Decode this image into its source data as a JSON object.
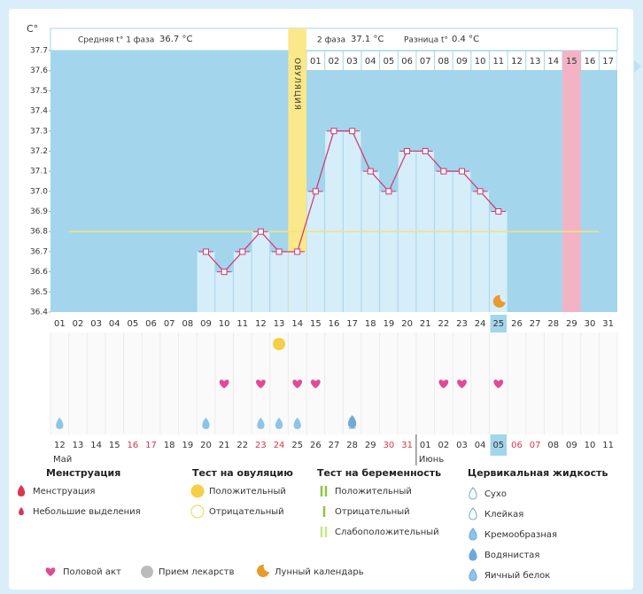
{
  "chart_data": {
    "type": "line",
    "unit_label": "C°",
    "phase1_label": "Средняя t° 1 фаза",
    "phase1_value": "36.7 °C",
    "phase2_label": "2 фаза",
    "phase2_value": "37.1 °C",
    "diff_label": "Разница t°",
    "diff_value": "0.4 °C",
    "phase_labels": [
      null,
      null,
      null,
      null,
      null,
      null,
      null,
      null,
      null,
      null,
      null,
      null,
      null,
      "ОВУЛЯЦИЯ",
      "01",
      "02",
      "03",
      "04",
      "05",
      "06",
      "07",
      "08",
      "09",
      "10",
      "11",
      "12",
      "13",
      "14",
      "15",
      "16",
      "17"
    ],
    "categories": [
      "01",
      "02",
      "03",
      "04",
      "05",
      "06",
      "07",
      "08",
      "09",
      "10",
      "11",
      "12",
      "13",
      "14",
      "15",
      "16",
      "17",
      "18",
      "19",
      "20",
      "21",
      "22",
      "23",
      "24",
      "25",
      "26",
      "27",
      "28",
      "29",
      "30",
      "31"
    ],
    "temperatures": [
      null,
      null,
      null,
      null,
      null,
      null,
      null,
      null,
      36.7,
      36.6,
      36.7,
      36.8,
      36.7,
      36.7,
      37.0,
      37.3,
      37.3,
      37.1,
      37.0,
      37.2,
      37.2,
      37.1,
      37.1,
      37.0,
      36.9,
      null,
      null,
      null,
      null,
      null,
      null
    ],
    "ylim": [
      36.4,
      37.7
    ],
    "yticks": [
      36.4,
      36.5,
      36.6,
      36.7,
      36.8,
      36.9,
      {
        "value": 37,
        "label": "37.0"
      },
      37.1,
      37.2,
      37.3,
      37.4,
      37.5,
      37.6,
      37.7
    ],
    "coverline": 36.8,
    "line_color": "#d1356b",
    "coverline_color": "#f2e27a",
    "ovulation_day": "14",
    "expected_period_day": "29",
    "selected_day": "25",
    "moon_day": "25",
    "ovulation_test_positive": [
      "13"
    ],
    "intercourse": [
      "10",
      "12",
      "14",
      "15",
      "22",
      "23",
      "25"
    ],
    "egg_white": [
      "01",
      "09",
      "12",
      "13",
      "14"
    ],
    "watery": [
      "17"
    ],
    "dates": [
      "12",
      "13",
      "14",
      "15",
      "16",
      "17",
      "18",
      "19",
      "20",
      "21",
      "22",
      "23",
      "24",
      "25",
      "26",
      "27",
      "28",
      "29",
      "30",
      "31",
      "01",
      "02",
      "03",
      "04",
      "05",
      "06",
      "07",
      "08",
      "09",
      "10",
      "11"
    ],
    "weekend": [
      false,
      false,
      false,
      false,
      true,
      true,
      false,
      false,
      false,
      false,
      false,
      true,
      true,
      false,
      false,
      false,
      false,
      false,
      true,
      true,
      false,
      false,
      false,
      false,
      false,
      true,
      true,
      false,
      false,
      false,
      false
    ],
    "months": [
      "Май",
      "Июнь"
    ]
  },
  "legend": {
    "menstruation": {
      "title": "Менструация",
      "items": [
        "Менструация",
        "Небольшие выделения"
      ]
    },
    "ovulation_test": {
      "title": "Тест на овуляцию",
      "items": [
        "Положительный",
        "Отрицательный"
      ]
    },
    "pregnancy_test": {
      "title": "Тест на беременность",
      "items": [
        "Положительный",
        "Отрицательный",
        "Слабоположительный"
      ]
    },
    "cervical_fluid": {
      "title": "Цервикальная жидкость",
      "items": [
        "Сухо",
        "Клейкая",
        "Кремообразная",
        "Водянистая",
        "Яичный белок"
      ]
    },
    "other": [
      "Половой акт",
      "Прием лекарств",
      "Лунный календарь"
    ]
  }
}
